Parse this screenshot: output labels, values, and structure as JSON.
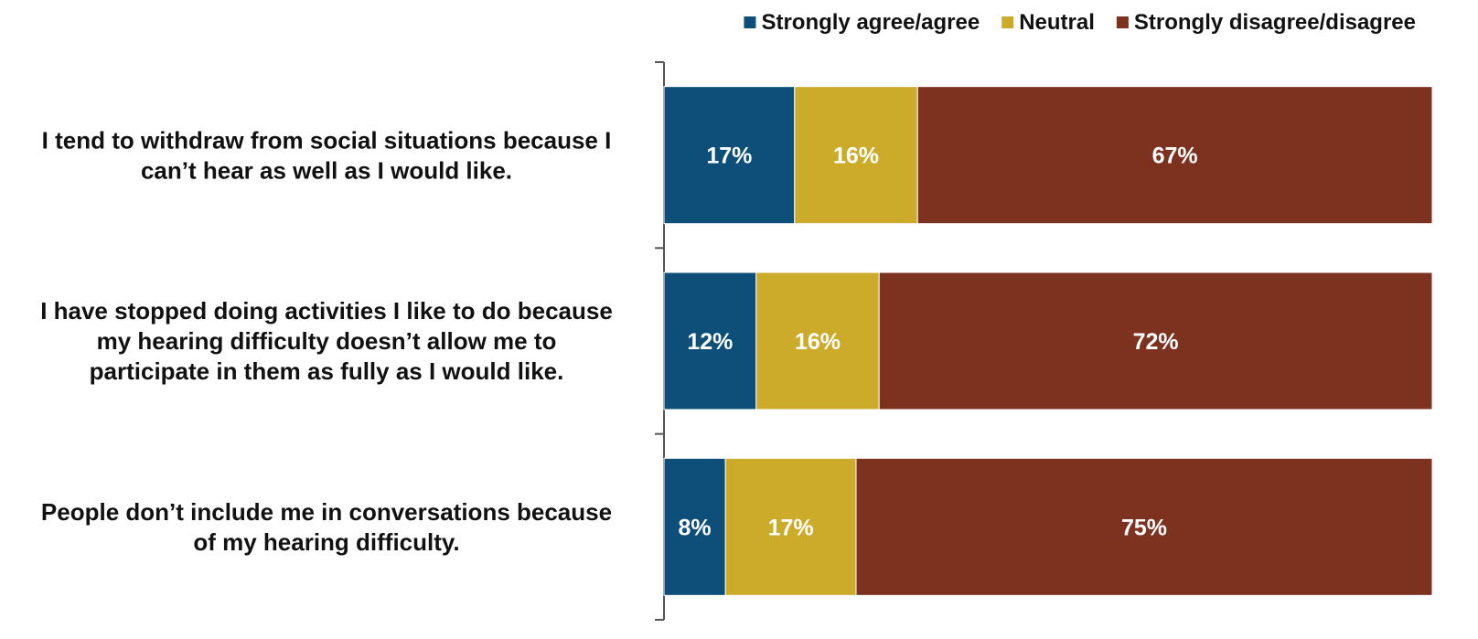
{
  "chart_data": {
    "type": "bar",
    "orientation": "horizontal",
    "stacked": true,
    "percent_stacked": true,
    "title": "",
    "xlabel": "",
    "ylabel": "",
    "xlim": [
      0,
      100
    ],
    "grid": false,
    "legend_position": "top-right",
    "categories": [
      "I tend to withdraw from social situations because I can’t hear as well as I would like.",
      "I have stopped doing activities I like to do because my hearing difficulty doesn’t allow me to participate in them as fully as I would like.",
      "People don’t include me in conversations because of my hearing difficulty."
    ],
    "category_lines": [
      [
        "I tend to withdraw from social situations because I",
        "can’t hear as well as I would like."
      ],
      [
        "I have stopped doing activities I like to do because",
        "my hearing difficulty doesn’t allow me to",
        "participate in them as fully as I would like."
      ],
      [
        "People don’t include me in conversations because",
        "of my hearing difficulty."
      ]
    ],
    "series": [
      {
        "name": "Strongly agree/agree",
        "color": "#0d4f78",
        "values": [
          17,
          12,
          8
        ],
        "labels": [
          "17%",
          "12%",
          "8%"
        ]
      },
      {
        "name": "Neutral",
        "color": "#ccab2a",
        "values": [
          16,
          16,
          17
        ],
        "labels": [
          "16%",
          "16%",
          "17%"
        ]
      },
      {
        "name": "Strongly disagree/disagree",
        "color": "#7d3220",
        "values": [
          67,
          72,
          75
        ],
        "labels": [
          "67%",
          "72%",
          "75%"
        ]
      }
    ]
  }
}
